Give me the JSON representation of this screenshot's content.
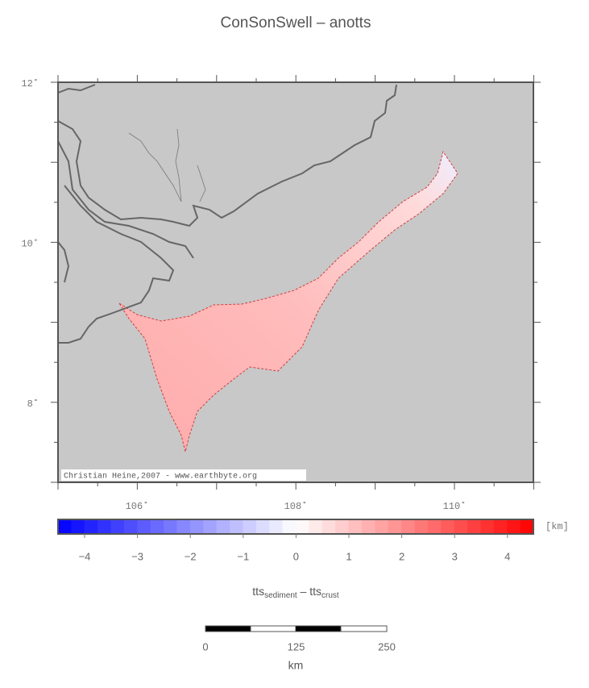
{
  "title": "ConSonSwell – anotts",
  "map": {
    "lat_labels": [
      "12˚",
      "10˚",
      "8˚"
    ],
    "lon_labels": [
      "106˚",
      "108˚",
      "110˚"
    ],
    "credit": "Christian Heine,2007 - www.earthbyte.org"
  },
  "colorbar": {
    "unit": "[km]",
    "ticks": [
      "−4",
      "−3",
      "−2",
      "−1",
      "0",
      "1",
      "2",
      "3",
      "4"
    ],
    "label_parts": [
      "tts",
      "sediment",
      " – tts",
      "crust"
    ]
  },
  "scalebar": {
    "ticks": [
      "0",
      "125",
      "250"
    ],
    "unit": "km"
  }
}
